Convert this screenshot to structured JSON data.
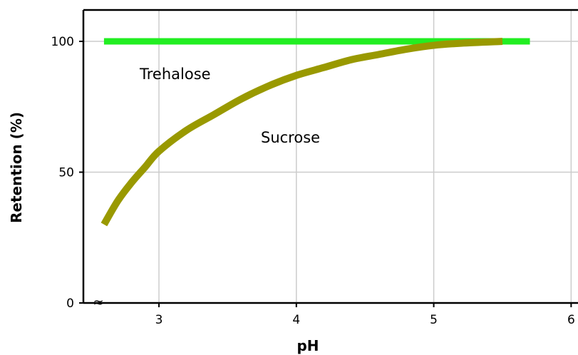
{
  "chart_data": {
    "type": "line",
    "title": "",
    "xlabel": "pH",
    "ylabel": "Retention (%)",
    "xlim": [
      2.45,
      6.05
    ],
    "ylim": [
      0,
      112
    ],
    "x_ticks": [
      "3",
      "4",
      "5",
      "6"
    ],
    "y_ticks": [
      "0",
      "50",
      "100"
    ],
    "grid": true,
    "axis_break": "≈",
    "series": [
      {
        "name": "Trehalose",
        "color": "#22ee22",
        "x": [
          2.6,
          5.7
        ],
        "y": [
          100,
          100
        ]
      },
      {
        "name": "Sucrose",
        "color": "#999900",
        "x": [
          2.6,
          2.7,
          2.8,
          2.9,
          3.0,
          3.2,
          3.4,
          3.6,
          3.8,
          4.0,
          4.2,
          4.4,
          4.6,
          4.8,
          5.0,
          5.2,
          5.5
        ],
        "y": [
          30,
          39,
          46,
          52,
          58,
          66,
          72,
          78,
          83,
          87,
          90,
          93,
          95,
          97,
          98.5,
          99.3,
          100
        ]
      }
    ]
  }
}
